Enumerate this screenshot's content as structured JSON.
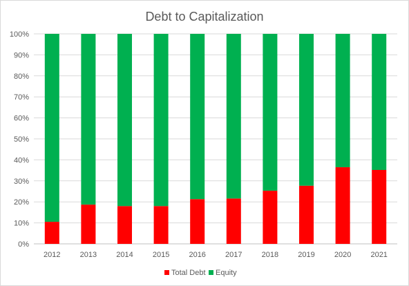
{
  "chart_data": {
    "type": "bar",
    "stacked": true,
    "title": "Debt to Capitalization",
    "xlabel": "",
    "ylabel": "",
    "categories": [
      "2012",
      "2013",
      "2014",
      "2015",
      "2016",
      "2017",
      "2018",
      "2019",
      "2020",
      "2021"
    ],
    "series": [
      {
        "name": "Total Debt",
        "color": "#ff0000",
        "values": [
          10.5,
          18.7,
          18.0,
          18.0,
          21.3,
          21.6,
          25.3,
          27.7,
          36.5,
          35.2
        ]
      },
      {
        "name": "Equity",
        "color": "#00b050",
        "values": [
          89.5,
          81.3,
          82.0,
          82.0,
          78.7,
          78.4,
          74.7,
          72.3,
          63.5,
          64.8
        ]
      }
    ],
    "ylim": [
      0,
      100
    ],
    "yticks": [
      "0%",
      "10%",
      "20%",
      "30%",
      "40%",
      "50%",
      "60%",
      "70%",
      "80%",
      "90%",
      "100%"
    ],
    "grid": "horizontal",
    "legend_position": "bottom"
  }
}
